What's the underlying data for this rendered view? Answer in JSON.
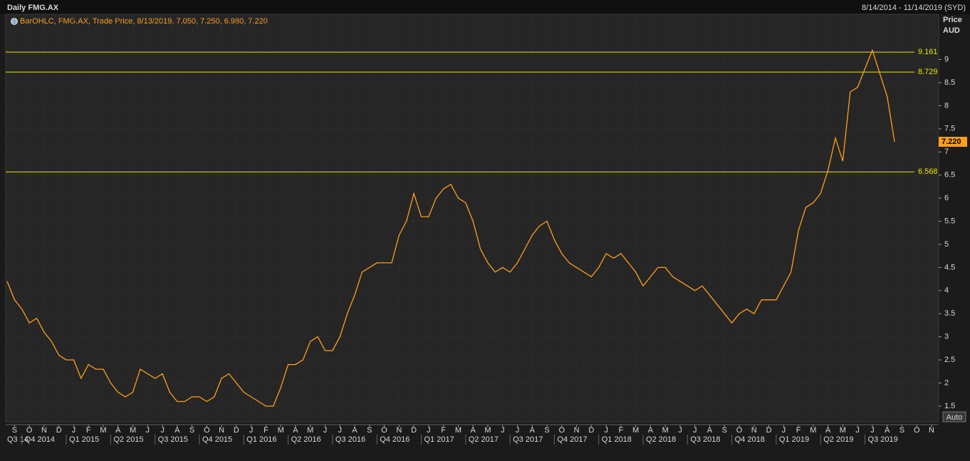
{
  "chart_data": {
    "type": "line",
    "title": "Daily FMG.AX",
    "date_range": "8/14/2014 - 11/14/2019 (SYD)",
    "legend_text": "BarOHLC, FMG.AX, Trade Price, 8/13/2019, 7.050, 7.250, 6.980, 7.220",
    "y_axis_title": "Price",
    "y_axis_unit": "AUD",
    "scale_button": "Auto",
    "color": "#ff9f1a",
    "categories": [
      null,
      "S",
      null,
      "O",
      null,
      "N",
      null,
      "D",
      null,
      "J",
      null,
      "F",
      null,
      "M",
      null,
      "A",
      null,
      "M",
      null,
      "J",
      null,
      "J",
      null,
      "A",
      null,
      "S",
      null,
      "O",
      null,
      "N",
      null,
      "D",
      null,
      "J",
      null,
      "F",
      null,
      "M",
      null,
      "A",
      null,
      "M",
      null,
      "J",
      null,
      "J",
      null,
      "A",
      null,
      "S",
      null,
      "O",
      null,
      "N",
      null,
      "D",
      null,
      "J",
      null,
      "F",
      null,
      "M",
      null,
      "A",
      null,
      "M",
      null,
      "J",
      null,
      "J",
      null,
      "A",
      null,
      "S",
      null,
      "O",
      null,
      "N",
      null,
      "D",
      null,
      "J",
      null,
      "F",
      null,
      "M",
      null,
      "A",
      null,
      "M",
      null,
      "J",
      null,
      "J",
      null,
      "A",
      null,
      "S",
      null,
      "O",
      null,
      "N",
      null,
      "D",
      null,
      "J",
      null,
      "F",
      null,
      "M",
      null,
      "A",
      null,
      "M",
      null,
      "J",
      null,
      "J",
      null,
      "A",
      null,
      "S",
      null,
      "O",
      null,
      "N"
    ],
    "quarters": [
      "Q3 14",
      "Q4 2014",
      "Q1 2015",
      "Q2 2015",
      "Q3 2015",
      "Q4 2015",
      "Q1 2016",
      "Q2 2016",
      "Q3 2016",
      "Q4 2016",
      "Q1 2017",
      "Q2 2017",
      "Q3 2017",
      "Q4 2017",
      "Q1 2018",
      "Q2 2018",
      "Q3 2018",
      "Q4 2018",
      "Q1 2019",
      "Q2 2019",
      "Q3 2019"
    ],
    "values": [
      4.2,
      3.8,
      3.6,
      3.3,
      3.4,
      3.1,
      2.9,
      2.6,
      2.5,
      2.5,
      2.1,
      2.4,
      2.3,
      2.3,
      2.0,
      1.8,
      1.7,
      1.8,
      2.3,
      2.2,
      2.1,
      2.2,
      1.8,
      1.6,
      1.6,
      1.7,
      1.7,
      1.6,
      1.7,
      2.1,
      2.2,
      2.0,
      1.8,
      1.7,
      1.6,
      1.5,
      1.5,
      1.9,
      2.4,
      2.4,
      2.5,
      2.9,
      3.0,
      2.7,
      2.7,
      3.0,
      3.5,
      3.9,
      4.4,
      4.5,
      4.6,
      4.6,
      4.6,
      5.2,
      5.5,
      6.1,
      5.6,
      5.6,
      6.0,
      6.2,
      6.3,
      6.0,
      5.9,
      5.5,
      4.9,
      4.6,
      4.4,
      4.5,
      4.4,
      4.6,
      4.9,
      5.2,
      5.4,
      5.5,
      5.1,
      4.8,
      4.6,
      4.5,
      4.4,
      4.3,
      4.5,
      4.8,
      4.7,
      4.8,
      4.6,
      4.4,
      4.1,
      4.3,
      4.5,
      4.5,
      4.3,
      4.2,
      4.1,
      4.0,
      4.1,
      3.9,
      3.7,
      3.5,
      3.3,
      3.5,
      3.6,
      3.5,
      3.8,
      3.8,
      3.8,
      4.1,
      4.4,
      5.3,
      5.8,
      5.9,
      6.1,
      6.6,
      7.3,
      6.8,
      8.3,
      8.4,
      8.8,
      9.2,
      8.7,
      8.2,
      7.22,
      null,
      null,
      null,
      null,
      null
    ],
    "hlines": [
      9.161,
      8.729,
      6.568
    ],
    "last_price": {
      "value": 7.22,
      "label": "7.220"
    },
    "ylim": [
      1.16,
      9.98
    ],
    "yticks": [
      1.5,
      2,
      2.5,
      3,
      3.5,
      4,
      4.5,
      5,
      5.5,
      6,
      6.5,
      7,
      7.5,
      8,
      8.5,
      9
    ],
    "grid": true
  }
}
